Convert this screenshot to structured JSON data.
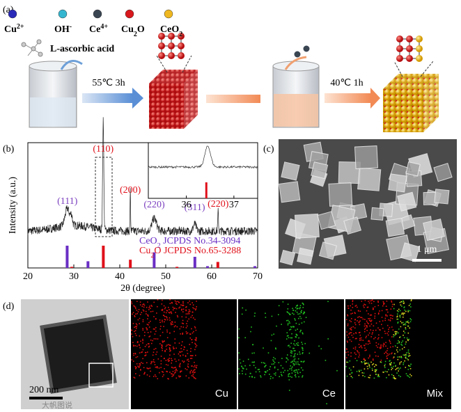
{
  "panel_labels": [
    "(a)",
    "(b)",
    "(c)",
    "(d)"
  ],
  "legend": [
    [
      {
        "t": "Cu"
      },
      {
        "t": "2+",
        "s": "sup"
      }
    ],
    [
      {
        "t": "OH"
      },
      {
        "t": "-",
        "s": "sup"
      }
    ],
    [
      {
        "t": "Ce"
      },
      {
        "t": "4+",
        "s": "sup"
      }
    ],
    [
      {
        "t": "Cu"
      },
      {
        "t": "2",
        "s": "sub"
      },
      {
        "t": "O"
      }
    ],
    [
      {
        "t": "CeO"
      },
      {
        "t": "2",
        "s": "sub"
      }
    ]
  ],
  "legend_colors": [
    "#2a2ab8",
    "#35b6d0",
    "#3a4552",
    "#d8181c",
    "#f0b820"
  ],
  "reagent": "L-ascorbic acid",
  "step1": "55℃ 3h",
  "step2": "40℃ 1h",
  "xrd": {
    "xlabel": "2θ (degree)",
    "ylabel": "Intensity (a.u.)",
    "xlim": [
      20,
      70
    ],
    "xticks": [
      20,
      30,
      40,
      50,
      60,
      70
    ],
    "inset": {
      "xlim": [
        35.2,
        37.5
      ],
      "xticks": [
        36,
        37
      ]
    },
    "peaks": [
      {
        "label": "(111)",
        "x": 28.6,
        "color": "#7b3fbf"
      },
      {
        "label": "(110)",
        "x": 36.4,
        "color": "#e0101a"
      },
      {
        "label": "(200)",
        "x": 42.3,
        "color": "#e0101a"
      },
      {
        "label": "(220)",
        "x": 47.5,
        "color": "#7b3fbf"
      },
      {
        "label": "(311)",
        "x": 56.3,
        "color": "#7b3fbf"
      },
      {
        "label": "(220)",
        "x": 61.4,
        "color": "#e0101a"
      }
    ],
    "references": [
      {
        "name": [
          {
            "t": "CeO"
          },
          {
            "t": "2",
            "s": "sub"
          },
          {
            "t": " JCPDS No.34-3094"
          }
        ],
        "color": "#6a2fc4",
        "positions": [
          28.55,
          33.08,
          47.48,
          56.34,
          59.09,
          69.4
        ],
        "intensities": [
          100,
          30,
          70,
          50,
          8,
          8
        ]
      },
      {
        "name": [
          {
            "t": "Cu"
          },
          {
            "t": "2",
            "s": "sub"
          },
          {
            "t": "O JCPDS No.65-3288"
          }
        ],
        "color": "#e0101a",
        "positions": [
          29.55,
          36.42,
          42.3,
          52.45,
          61.34
        ],
        "intensities": [
          5,
          100,
          37,
          5,
          27
        ]
      }
    ]
  },
  "sem": {
    "scale_bar": "1 μm"
  },
  "maps": {
    "scale_bar": "200 nm",
    "labels": [
      "Cu",
      "Ce",
      "Mix"
    ]
  },
  "watermark": "大帆图说"
}
